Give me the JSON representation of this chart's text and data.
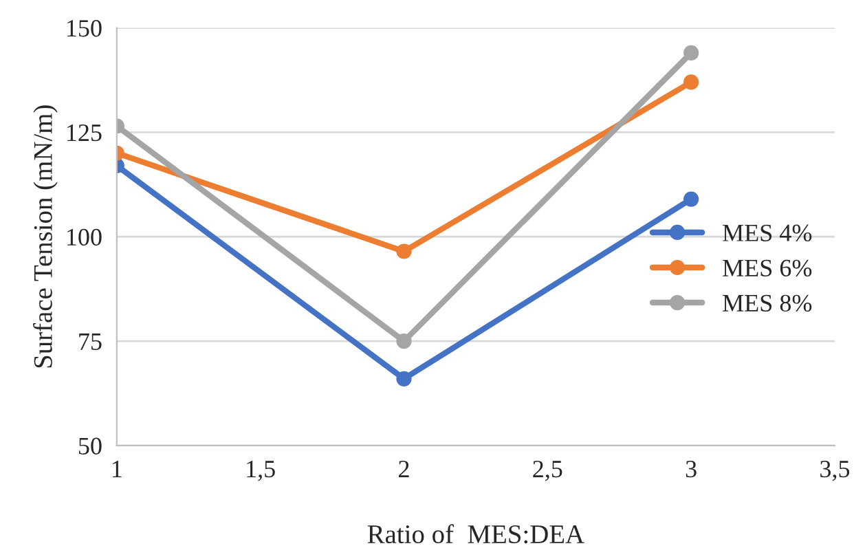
{
  "chart_data": {
    "type": "line",
    "xlabel": "Ratio of  MES:DEA",
    "ylabel": "Surface Tension (mN/m)",
    "xlim": [
      1,
      3.5
    ],
    "xticks": [
      1,
      {
        "value": 1.5,
        "label": "1,5"
      },
      2,
      {
        "value": 2.5,
        "label": "2,5"
      },
      3,
      {
        "value": 3.5,
        "label": "3,5"
      }
    ],
    "ylim": [
      50,
      150
    ],
    "yticks": [
      50,
      75,
      100,
      125,
      150
    ],
    "x": [
      1,
      2,
      3
    ],
    "series": [
      {
        "name": "MES 4%",
        "color": "#4472c4",
        "values": [
          117,
          66,
          109
        ]
      },
      {
        "name": "MES 6%",
        "color": "#ed7d31",
        "values": [
          120,
          96.5,
          137
        ]
      },
      {
        "name": "MES 8%",
        "color": "#a5a5a5",
        "values": [
          126.5,
          75,
          144
        ]
      }
    ],
    "grid": "y",
    "legend": "right",
    "marker": "circle",
    "line_style": "solid"
  }
}
